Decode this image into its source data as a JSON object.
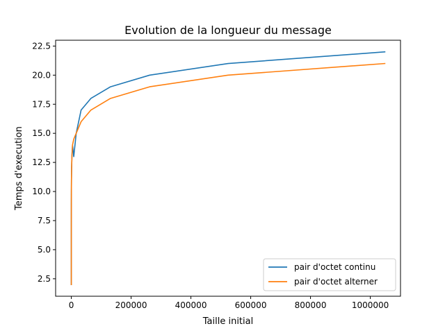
{
  "chart_data": {
    "type": "line",
    "title": "Evolution de la longueur du message",
    "xlabel": "Taille initial",
    "ylabel": "Temps d'execution",
    "xlim": [
      -52428,
      1101004
    ],
    "ylim": [
      1.0,
      23.0
    ],
    "xticks": [
      0,
      200000,
      400000,
      600000,
      800000,
      1000000
    ],
    "xtick_labels": [
      "0",
      "200000",
      "400000",
      "600000",
      "800000",
      "1000000"
    ],
    "yticks": [
      2.5,
      5.0,
      7.5,
      10.0,
      12.5,
      15.0,
      17.5,
      20.0,
      22.5
    ],
    "ytick_labels": [
      "2.5",
      "5.0",
      "7.5",
      "10.0",
      "12.5",
      "15.0",
      "17.5",
      "20.0",
      "22.5"
    ],
    "grid": false,
    "legend_position": "bottom-right",
    "series": [
      {
        "name": "pair d'octet continu",
        "color": "#1f77b4",
        "x": [
          1,
          2,
          4,
          8,
          16,
          32,
          64,
          128,
          256,
          512,
          1024,
          2048,
          4096,
          8192,
          16384,
          32768,
          65536,
          131072,
          262144,
          524288,
          1048576
        ],
        "y": [
          2,
          3,
          4,
          5,
          6,
          7,
          8,
          9,
          10,
          11,
          12,
          13,
          14,
          13,
          15,
          17,
          18,
          19,
          20,
          21,
          22
        ]
      },
      {
        "name": "pair d'octet alterner",
        "color": "#ff7f0e",
        "x": [
          1,
          2,
          4,
          8,
          16,
          32,
          64,
          128,
          256,
          512,
          1024,
          2048,
          4096,
          8192,
          16384,
          32768,
          65536,
          131072,
          262144,
          524288,
          1048576
        ],
        "y": [
          2,
          3,
          4,
          5,
          6,
          7,
          8,
          9,
          10,
          11,
          12,
          13,
          14,
          14.5,
          15,
          16,
          17,
          18,
          19,
          20,
          21
        ]
      }
    ]
  }
}
